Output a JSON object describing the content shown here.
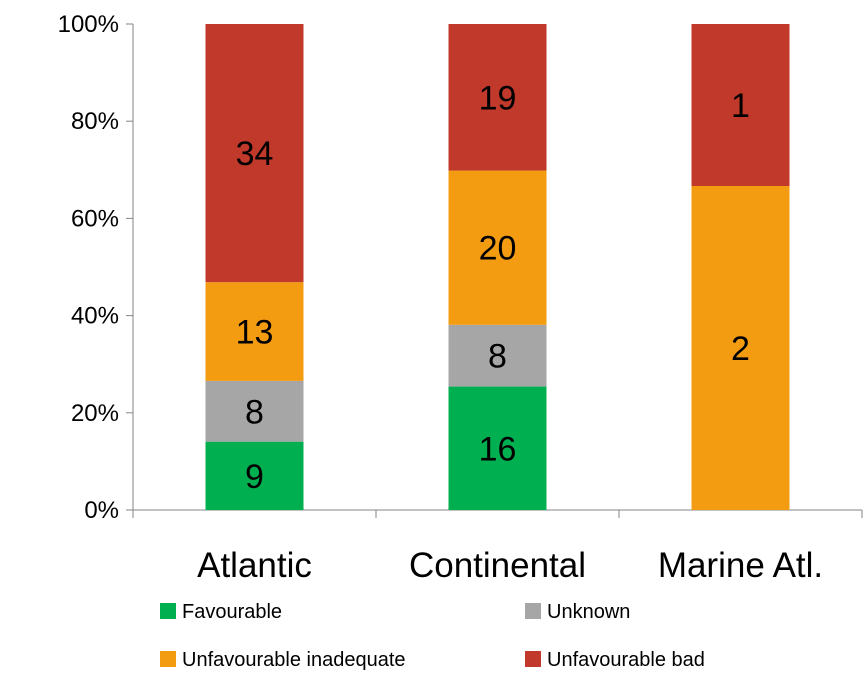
{
  "chart_data": {
    "type": "bar",
    "stacked": true,
    "normalized": true,
    "categories": [
      "Atlantic",
      "Continental",
      "Marine Atl."
    ],
    "series": [
      {
        "name": "Favourable",
        "color": "#00b050",
        "values": [
          9,
          16,
          0
        ]
      },
      {
        "name": "Unknown",
        "color": "#a6a6a6",
        "values": [
          8,
          8,
          0
        ]
      },
      {
        "name": "Unfavourable inadequate",
        "color": "#f39c12",
        "values": [
          13,
          20,
          2
        ]
      },
      {
        "name": "Unfavourable bad",
        "color": "#c0392b",
        "values": [
          34,
          19,
          1
        ]
      }
    ],
    "yticks": [
      "0%",
      "20%",
      "40%",
      "60%",
      "80%",
      "100%"
    ],
    "ylim": [
      0,
      100
    ],
    "grid": false,
    "legend_position": "bottom"
  }
}
